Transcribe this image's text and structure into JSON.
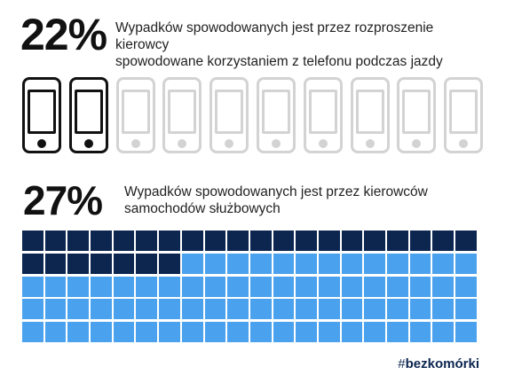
{
  "stat1": {
    "value": "22%",
    "line1": "Wypadków spowodowanych jest przez rozproszenie kierowcy",
    "line2": "spowodowane korzystaniem z telefonu podczas jazdy"
  },
  "phones": {
    "total": 10,
    "highlighted": 2,
    "icon": "smartphone-icon",
    "colors": {
      "highlighted": "#111111",
      "muted": "#d3d3d3"
    }
  },
  "stat2": {
    "value": "27%",
    "line1": "Wypadków spowodowanych jest przez kierowców",
    "line2": "samochodów służbowych"
  },
  "grid": {
    "total": 100,
    "filled": 27,
    "colors": {
      "filled": "#0c2650",
      "empty": "#4aa2ee"
    }
  },
  "footer": {
    "hash": "#",
    "brand_bold": "bezkomórki"
  }
}
